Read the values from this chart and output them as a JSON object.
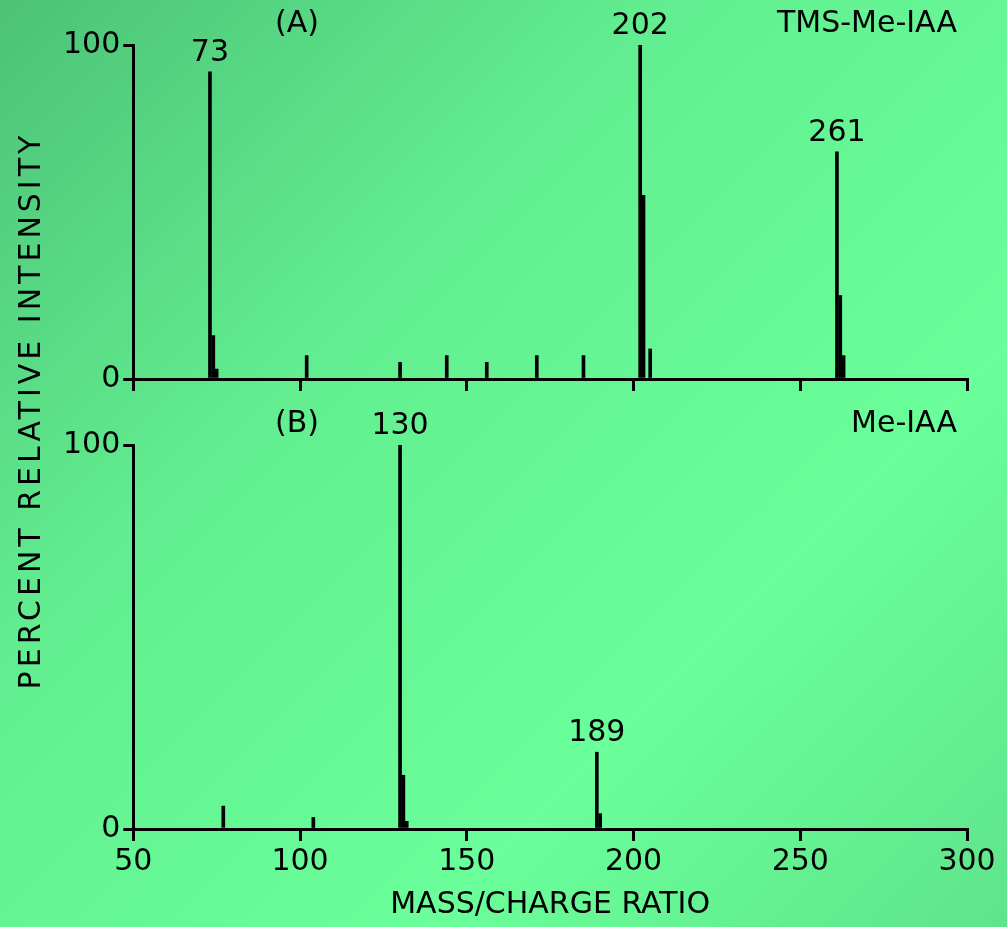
{
  "chart_data": [
    {
      "type": "bar",
      "ylabel": "PERCENT RELATIVE INTENSITY",
      "x": [
        73,
        74,
        75,
        102,
        130,
        144,
        156,
        171,
        185,
        202,
        203,
        205,
        261,
        262,
        263
      ],
      "series": [
        {
          "color": "#000000",
          "values": [
            92,
            13,
            3,
            7,
            5,
            7,
            5,
            7,
            7,
            100,
            55,
            9,
            68,
            25,
            7
          ]
        }
      ],
      "xlim": [
        50,
        300
      ],
      "xticks": [
        {
          "value": 50,
          "label": null
        },
        {
          "value": 100,
          "label": null
        },
        {
          "value": 150,
          "label": null
        },
        {
          "value": 200,
          "label": null
        },
        {
          "value": 250,
          "label": null
        },
        {
          "value": 300,
          "label": null
        }
      ],
      "ylim": [
        0,
        100
      ],
      "yticks": [
        {
          "value": 0,
          "label": "0"
        },
        100
      ],
      "tick_labels": "y",
      "grid": false,
      "legend": false,
      "annotations": [
        "(A)",
        "TMS-Me-IAA",
        {
          "text": "73",
          "x": 73,
          "y": 92
        },
        {
          "text": "202",
          "x": 202,
          "y": 100
        },
        {
          "text": "261",
          "x": 261,
          "y": 68
        }
      ]
    },
    {
      "type": "bar",
      "xlabel": "MASS/CHARGE RATIO",
      "x": [
        77,
        104,
        130,
        131,
        132,
        189,
        190
      ],
      "series": [
        {
          "color": "#000000",
          "values": [
            6,
            3,
            100,
            14,
            2,
            20,
            4
          ]
        }
      ],
      "xlim": [
        50,
        300
      ],
      "xticks": [
        50,
        100,
        150,
        200,
        250,
        300
      ],
      "ylim": [
        0,
        100
      ],
      "yticks": [
        {
          "value": 0,
          "label": "0"
        },
        100
      ],
      "grid": false,
      "legend": false,
      "annotations": [
        "(B)",
        "Me-IAA",
        {
          "text": "130",
          "x": 130,
          "y": 100
        },
        {
          "text": "189",
          "x": 189,
          "y": 20
        }
      ]
    }
  ]
}
